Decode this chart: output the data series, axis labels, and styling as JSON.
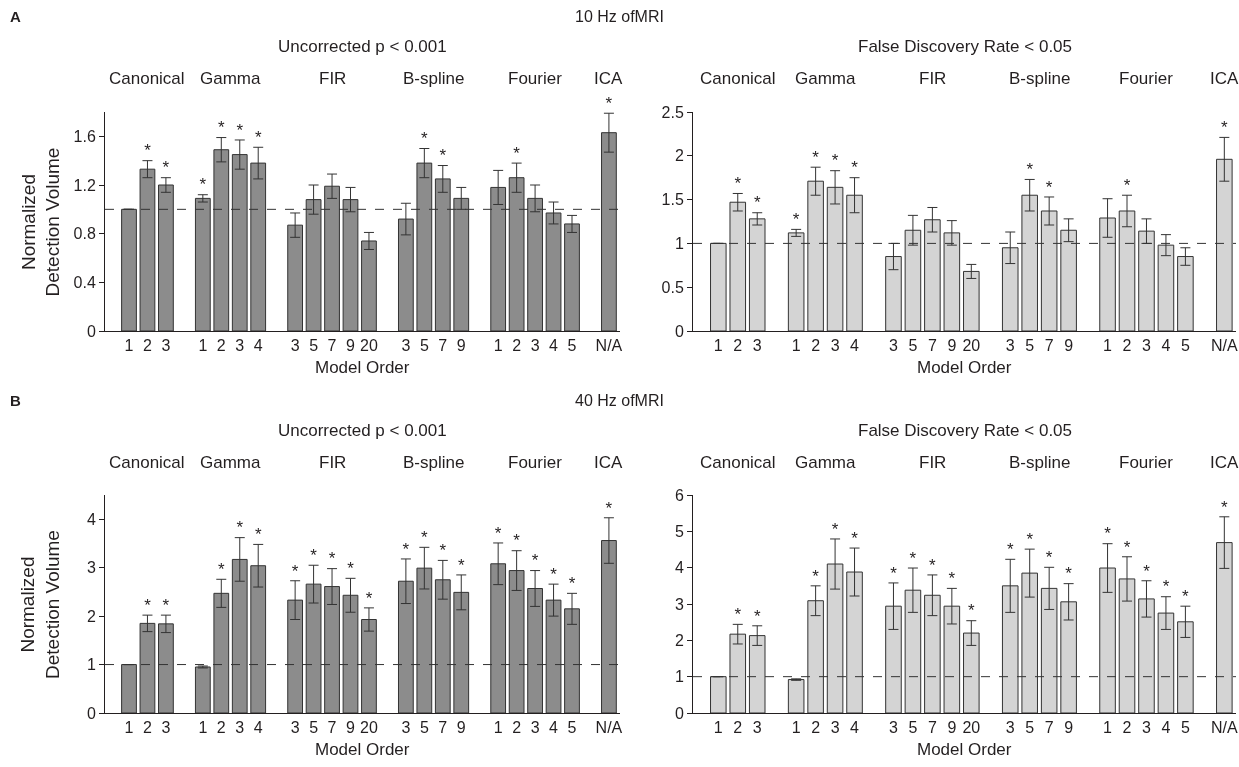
{
  "chart_data": [
    {
      "type": "bar",
      "title": "Uncorrected p < 0.001",
      "xlabel": "Model Order",
      "ylabel": "Normalized\nDetection Volume",
      "annotations": [
        "A",
        "10 Hz ofMRI",
        "Canonical",
        "Gamma",
        "FIR",
        "B-spline",
        "Fourier",
        "ICA"
      ],
      "categories": [
        "1",
        "2",
        "3",
        null,
        "1",
        "2",
        "3",
        "4",
        null,
        "3",
        "5",
        "7",
        "9",
        "20",
        null,
        "3",
        "5",
        "7",
        "9",
        null,
        "1",
        "2",
        "3",
        "4",
        "5",
        null,
        "N/A"
      ],
      "color": "#8c8c8c",
      "values": [
        1.0,
        1.33,
        1.2,
        null,
        1.09,
        1.49,
        1.45,
        1.38,
        null,
        0.87,
        1.08,
        1.19,
        1.08,
        0.74,
        null,
        0.92,
        1.38,
        1.25,
        1.09,
        null,
        1.18,
        1.26,
        1.09,
        0.97,
        0.88,
        null,
        1.63
      ],
      "errors": [
        null,
        0.07,
        0.06,
        null,
        0.03,
        0.1,
        0.12,
        0.13,
        null,
        0.1,
        0.12,
        0.1,
        0.1,
        0.07,
        null,
        0.13,
        0.12,
        0.11,
        0.09,
        null,
        0.14,
        0.12,
        0.11,
        0.09,
        0.07,
        null,
        0.16
      ],
      "value_labels": [
        null,
        "*",
        "*",
        null,
        "*",
        "*",
        "*",
        "*",
        null,
        null,
        null,
        null,
        null,
        null,
        null,
        null,
        "*",
        "*",
        null,
        null,
        null,
        "*",
        null,
        null,
        null,
        null,
        "*"
      ],
      "ylim": [
        0,
        1.8
      ],
      "yticks": [
        0,
        0.4,
        0.8,
        1.2,
        1.6
      ],
      "ref_lines": [
        {
          "axis": "y",
          "value": 1,
          "line_style": "dashed",
          "color": "#333333"
        }
      ]
    },
    {
      "type": "bar",
      "title": "False Discovery Rate < 0.05",
      "xlabel": "Model Order",
      "annotations": [
        "Canonical",
        "Gamma",
        "FIR",
        "B-spline",
        "Fourier",
        "ICA"
      ],
      "categories": [
        "1",
        "2",
        "3",
        null,
        "1",
        "2",
        "3",
        "4",
        null,
        "3",
        "5",
        "7",
        "9",
        "20",
        null,
        "3",
        "5",
        "7",
        "9",
        null,
        "1",
        "2",
        "3",
        "4",
        "5",
        null,
        "N/A"
      ],
      "color": "#d4d4d4",
      "values": [
        1.0,
        1.47,
        1.28,
        null,
        1.12,
        1.71,
        1.64,
        1.55,
        null,
        0.85,
        1.15,
        1.27,
        1.12,
        0.68,
        null,
        0.95,
        1.55,
        1.37,
        1.15,
        null,
        1.29,
        1.37,
        1.14,
        0.98,
        0.85,
        null,
        1.96
      ],
      "errors": [
        null,
        0.1,
        0.07,
        null,
        0.04,
        0.16,
        0.19,
        0.2,
        null,
        0.15,
        0.17,
        0.14,
        0.14,
        0.08,
        null,
        0.18,
        0.18,
        0.16,
        0.13,
        null,
        0.22,
        0.18,
        0.14,
        0.12,
        0.1,
        null,
        0.25
      ],
      "value_labels": [
        null,
        "*",
        "*",
        null,
        "*",
        "*",
        "*",
        "*",
        null,
        null,
        null,
        null,
        null,
        null,
        null,
        null,
        "*",
        "*",
        null,
        null,
        null,
        "*",
        null,
        null,
        null,
        null,
        "*"
      ],
      "ylim": [
        0,
        2.5
      ],
      "yticks": [
        0,
        0.5,
        1,
        1.5,
        2,
        2.5
      ],
      "ref_lines": [
        {
          "axis": "y",
          "value": 1,
          "line_style": "dashed",
          "color": "#333333"
        }
      ]
    },
    {
      "type": "bar",
      "title": "Uncorrected p < 0.001",
      "xlabel": "Model Order",
      "ylabel": "Normalized\nDetection Volume",
      "annotations": [
        "B",
        "40 Hz ofMRI",
        "Canonical",
        "Gamma",
        "FIR",
        "B-spline",
        "Fourier",
        "ICA"
      ],
      "categories": [
        "1",
        "2",
        "3",
        null,
        "1",
        "2",
        "3",
        "4",
        null,
        "3",
        "5",
        "7",
        "9",
        "20",
        null,
        "3",
        "5",
        "7",
        "9",
        null,
        "1",
        "2",
        "3",
        "4",
        "5",
        null,
        "N/A"
      ],
      "color": "#8c8c8c",
      "values": [
        1.0,
        1.85,
        1.84,
        null,
        0.95,
        2.47,
        3.17,
        3.04,
        null,
        2.33,
        2.66,
        2.61,
        2.43,
        1.93,
        null,
        2.72,
        2.99,
        2.75,
        2.49,
        null,
        3.08,
        2.94,
        2.57,
        2.33,
        2.15,
        null,
        3.56
      ],
      "errors": [
        null,
        0.17,
        0.18,
        null,
        0.02,
        0.29,
        0.45,
        0.44,
        null,
        0.4,
        0.39,
        0.37,
        0.35,
        0.24,
        null,
        0.46,
        0.43,
        0.4,
        0.36,
        null,
        0.43,
        0.41,
        0.37,
        0.33,
        0.32,
        null,
        0.47
      ],
      "value_labels": [
        null,
        "*",
        "*",
        null,
        null,
        "*",
        "*",
        "*",
        null,
        "*",
        "*",
        "*",
        "*",
        "*",
        null,
        "*",
        "*",
        "*",
        "*",
        null,
        "*",
        "*",
        "*",
        "*",
        "*",
        null,
        "*"
      ],
      "ylim": [
        0,
        4.5
      ],
      "yticks": [
        0,
        1,
        2,
        3,
        4
      ],
      "ref_lines": [
        {
          "axis": "y",
          "value": 1,
          "line_style": "dashed",
          "color": "#333333"
        }
      ]
    },
    {
      "type": "bar",
      "title": "False Discovery Rate < 0.05",
      "xlabel": "Model Order",
      "annotations": [
        "Canonical",
        "Gamma",
        "FIR",
        "B-spline",
        "Fourier",
        "ICA"
      ],
      "categories": [
        "1",
        "2",
        "3",
        null,
        "1",
        "2",
        "3",
        "4",
        null,
        "3",
        "5",
        "7",
        "9",
        "20",
        null,
        "3",
        "5",
        "7",
        "9",
        null,
        "1",
        "2",
        "3",
        "4",
        "5",
        null,
        "N/A"
      ],
      "color": "#d4d4d4",
      "values": [
        1.0,
        2.17,
        2.13,
        null,
        0.92,
        3.09,
        4.1,
        3.88,
        null,
        2.94,
        3.38,
        3.24,
        2.94,
        2.2,
        null,
        3.5,
        3.85,
        3.43,
        3.06,
        null,
        3.99,
        3.69,
        3.14,
        2.75,
        2.51,
        null,
        4.69
      ],
      "errors": [
        null,
        0.27,
        0.27,
        null,
        0.02,
        0.41,
        0.69,
        0.66,
        null,
        0.64,
        0.61,
        0.56,
        0.49,
        0.34,
        null,
        0.73,
        0.66,
        0.58,
        0.5,
        null,
        0.67,
        0.61,
        0.5,
        0.45,
        0.43,
        null,
        0.71
      ],
      "value_labels": [
        null,
        "*",
        "*",
        null,
        null,
        "*",
        "*",
        "*",
        null,
        "*",
        "*",
        "*",
        "*",
        "*",
        null,
        "*",
        "*",
        "*",
        "*",
        null,
        "*",
        "*",
        "*",
        "*",
        "*",
        null,
        "*"
      ],
      "ylim": [
        0,
        6
      ],
      "yticks": [
        0,
        1,
        2,
        3,
        4,
        5,
        6
      ],
      "ref_lines": [
        {
          "axis": "y",
          "value": 1,
          "line_style": "dashed",
          "color": "#333333"
        }
      ]
    }
  ]
}
